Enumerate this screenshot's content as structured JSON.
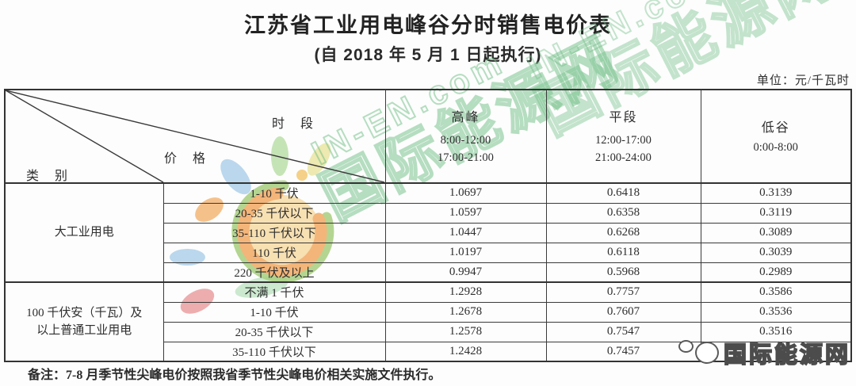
{
  "page": {
    "title": "江苏省工业用电峰谷分时销售电价表",
    "subtitle": "(自 2018 年 5 月 1 日起执行)",
    "unit_label": "单位：元/千瓦时",
    "note": "备注：7-8 月季节性尖峰电价按照我省季节性尖峰电价相关实施文件执行。"
  },
  "table": {
    "corner": {
      "time_label": "时 段",
      "price_label": "价 格",
      "category_label": "类 别"
    },
    "columns": [
      {
        "name": "高峰",
        "times": [
          "8:00-12:00",
          "17:00-21:00"
        ]
      },
      {
        "name": "平段",
        "times": [
          "12:00-17:00",
          "21:00-24:00"
        ]
      },
      {
        "name": "低谷",
        "times": [
          "0:00-8:00"
        ]
      }
    ],
    "groups": [
      {
        "category": "大工业用电",
        "category_lines": [
          "大工业用电"
        ],
        "rows": [
          {
            "voltage": "1-10 千伏",
            "values": [
              "1.0697",
              "0.6418",
              "0.3139"
            ]
          },
          {
            "voltage": "20-35 千伏以下",
            "values": [
              "1.0597",
              "0.6358",
              "0.3119"
            ]
          },
          {
            "voltage": "35-110 千伏以下",
            "values": [
              "1.0447",
              "0.6268",
              "0.3089"
            ]
          },
          {
            "voltage": "110 千伏",
            "values": [
              "1.0197",
              "0.6118",
              "0.3039"
            ]
          },
          {
            "voltage": "220 千伏及以上",
            "values": [
              "0.9947",
              "0.5968",
              "0.2989"
            ]
          }
        ]
      },
      {
        "category": "100 千伏安（千瓦）及以上普通工业用电",
        "category_lines": [
          "100 千伏安（千瓦）及",
          "以上普通工业用电"
        ],
        "rows": [
          {
            "voltage": "不满 1 千伏",
            "values": [
              "1.2928",
              "0.7757",
              "0.3586"
            ]
          },
          {
            "voltage": "1-10 千伏",
            "values": [
              "1.2678",
              "0.7607",
              "0.3536"
            ]
          },
          {
            "voltage": "20-35 千伏以下",
            "values": [
              "1.2578",
              "0.7547",
              "0.3516"
            ]
          },
          {
            "voltage": "35-110 千伏以下",
            "values": [
              "1.2428",
              "0.7457",
              ""
            ]
          }
        ]
      }
    ]
  },
  "watermark": {
    "site_en": "IN-EN.com",
    "site_cn": "国际能源网"
  },
  "logo": {
    "text": "国际能源网"
  }
}
